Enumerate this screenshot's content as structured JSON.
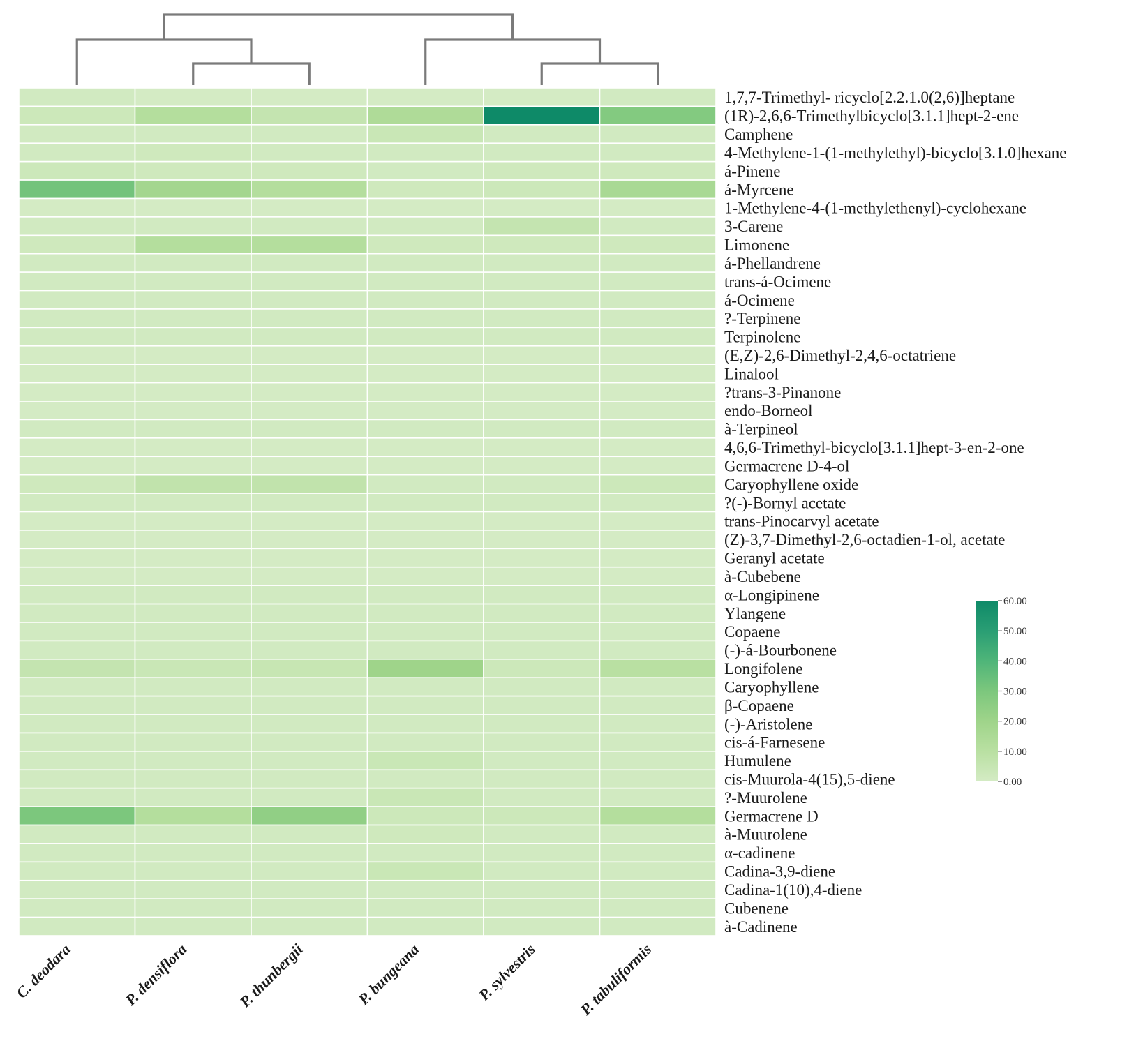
{
  "chart_data": {
    "type": "heatmap",
    "title": "",
    "columns": [
      "C. deodara",
      "P. densiflora",
      "P. thunbergii",
      "P. bungeana",
      "P. sylvestris",
      "P. tabuliformis"
    ],
    "rows": [
      "1,7,7-Trimethyl- ricyclo[2.2.1.0(2,6)]heptane",
      "(1R)-2,6,6-Trimethylbicyclo[3.1.1]hept-2-ene",
      "Camphene",
      "4-Methylene-1-(1-methylethyl)-bicyclo[3.1.0]hexane",
      "á-Pinene",
      "á-Myrcene",
      "1-Methylene-4-(1-methylethenyl)-cyclohexane",
      "3-Carene",
      "Limonene",
      "á-Phellandrene",
      "trans-á-Ocimene",
      "á-Ocimene",
      "?-Terpinene",
      "Terpinolene",
      "(E,Z)-2,6-Dimethyl-2,4,6-octatriene",
      "Linalool",
      "?trans-3-Pinanone",
      "endo-Borneol",
      "à-Terpineol",
      "4,6,6-Trimethyl-bicyclo[3.1.1]hept-3-en-2-one",
      "Germacrene D-4-ol",
      "Caryophyllene oxide",
      "?(-)-Bornyl acetate",
      "trans-Pinocarvyl acetate",
      "(Z)-3,7-Dimethyl-2,6-octadien-1-ol, acetate",
      "Geranyl acetate",
      "à-Cubebene",
      "α-Longipinene",
      "Ylangene",
      "Copaene",
      "(-)-á-Bourbonene",
      "Longifolene",
      "Caryophyllene",
      "β-Copaene",
      "(-)-Aristolene",
      "cis-á-Farnesene",
      "Humulene",
      "cis-Muurola-4(15),5-diene",
      "?-Muurolene",
      "Germacrene D",
      "à-Muurolene",
      "α-cadinene",
      "Cadina-3,9-diene",
      "Cadina-1(10),4-diene",
      "Cubenene",
      "à-Cadinene"
    ],
    "values": [
      [
        1,
        0,
        0,
        0,
        0,
        1
      ],
      [
        3,
        12,
        6,
        14,
        60,
        28
      ],
      [
        1,
        1,
        1,
        4,
        1,
        1
      ],
      [
        1,
        2,
        1,
        1,
        1,
        1
      ],
      [
        3,
        2,
        2,
        1,
        2,
        2
      ],
      [
        32,
        18,
        12,
        2,
        3,
        16
      ],
      [
        0,
        0,
        0,
        0,
        0,
        0
      ],
      [
        1,
        1,
        1,
        1,
        6,
        1
      ],
      [
        2,
        12,
        12,
        2,
        2,
        2
      ],
      [
        1,
        1,
        1,
        1,
        1,
        1
      ],
      [
        1,
        1,
        1,
        1,
        1,
        1
      ],
      [
        1,
        1,
        1,
        1,
        1,
        1
      ],
      [
        1,
        1,
        1,
        1,
        1,
        1
      ],
      [
        1,
        1,
        1,
        1,
        1,
        1
      ],
      [
        0,
        0,
        0,
        0,
        0,
        0
      ],
      [
        0,
        0,
        0,
        0,
        0,
        0
      ],
      [
        0,
        0,
        0,
        0,
        0,
        0
      ],
      [
        0,
        0,
        0,
        0,
        0,
        0
      ],
      [
        1,
        1,
        1,
        1,
        1,
        1
      ],
      [
        0,
        0,
        0,
        0,
        0,
        0
      ],
      [
        0,
        0,
        0,
        0,
        0,
        0
      ],
      [
        2,
        7,
        7,
        1,
        1,
        3
      ],
      [
        1,
        1,
        1,
        1,
        1,
        1
      ],
      [
        0,
        0,
        0,
        0,
        0,
        0
      ],
      [
        0,
        0,
        0,
        0,
        0,
        0
      ],
      [
        0,
        0,
        0,
        0,
        0,
        0
      ],
      [
        0,
        0,
        0,
        0,
        0,
        0
      ],
      [
        1,
        1,
        1,
        1,
        1,
        1
      ],
      [
        1,
        1,
        1,
        1,
        1,
        1
      ],
      [
        1,
        1,
        1,
        1,
        1,
        1
      ],
      [
        1,
        1,
        1,
        1,
        1,
        1
      ],
      [
        6,
        4,
        5,
        20,
        3,
        10
      ],
      [
        1,
        1,
        1,
        1,
        1,
        1
      ],
      [
        1,
        1,
        1,
        1,
        1,
        1
      ],
      [
        1,
        1,
        1,
        1,
        1,
        1
      ],
      [
        1,
        1,
        1,
        1,
        1,
        1
      ],
      [
        1,
        1,
        1,
        4,
        1,
        1
      ],
      [
        1,
        1,
        1,
        1,
        1,
        1
      ],
      [
        1,
        1,
        1,
        4,
        1,
        1
      ],
      [
        30,
        12,
        24,
        3,
        3,
        12
      ],
      [
        1,
        1,
        1,
        2,
        1,
        1
      ],
      [
        1,
        1,
        1,
        1,
        1,
        1
      ],
      [
        1,
        1,
        1,
        4,
        1,
        1
      ],
      [
        1,
        1,
        1,
        1,
        1,
        1
      ],
      [
        1,
        1,
        1,
        1,
        1,
        1
      ],
      [
        1,
        1,
        1,
        1,
        1,
        1
      ]
    ],
    "colorbar": {
      "range": [
        0,
        60
      ],
      "ticks": [
        "60.00",
        "50.00",
        "40.00",
        "30.00",
        "20.00",
        "10.00",
        "0.00"
      ],
      "colors": [
        "#d4ebc4",
        "#b9e0a2",
        "#9fd48a",
        "#7cc77d",
        "#4fb579",
        "#2a9e74",
        "#0e8a68"
      ]
    },
    "dendrogram": {
      "order": [
        "C. deodara",
        "P. densiflora",
        "P. thunbergii",
        "P. bungeana",
        "P. sylvestris",
        "P. tabuliformis"
      ],
      "merges": [
        [
          2,
          3
        ],
        [
          1,
          "A"
        ],
        [
          5,
          6
        ],
        [
          4,
          "C"
        ],
        [
          "B",
          "D"
        ]
      ],
      "line_color": "#7a7a7a"
    }
  }
}
